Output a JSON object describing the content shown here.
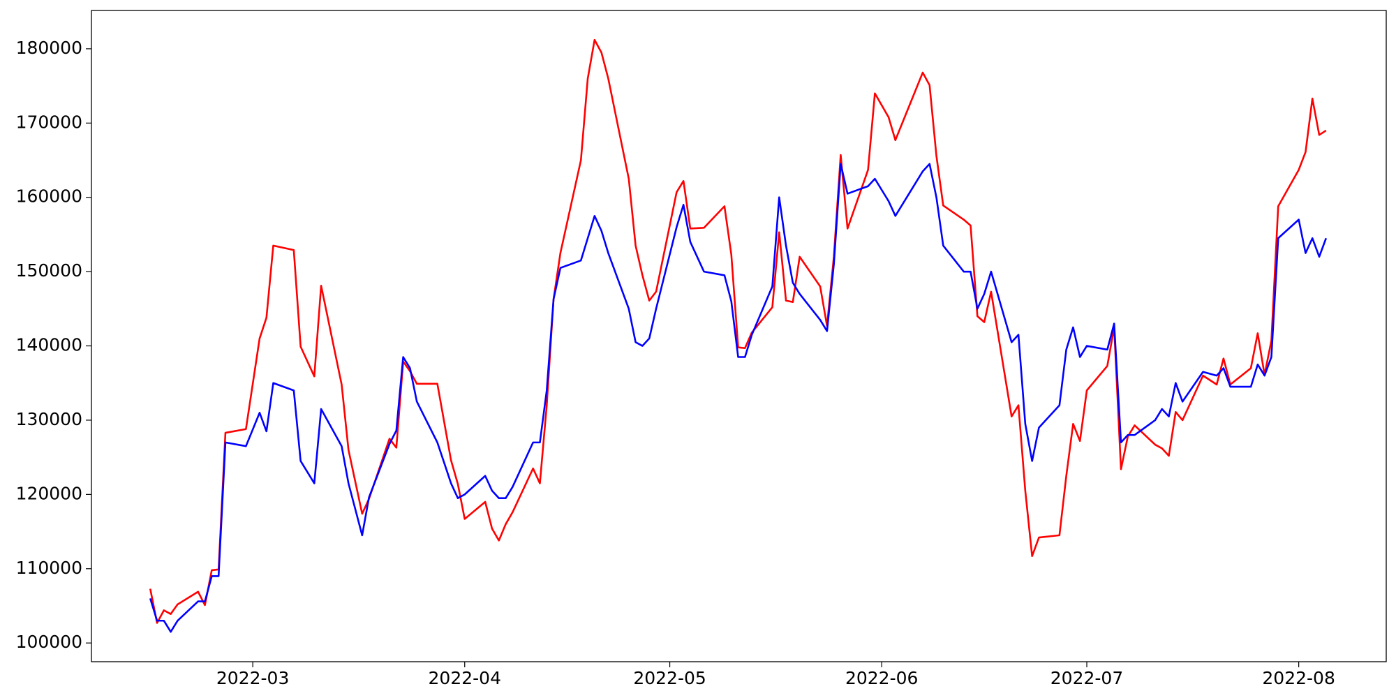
{
  "chart_data": {
    "type": "line",
    "x": [
      45,
      46,
      47,
      48,
      49,
      52,
      53,
      54,
      55,
      56,
      59,
      61,
      62,
      63,
      66,
      67,
      69,
      70,
      73,
      74,
      76,
      77,
      80,
      81,
      82,
      83,
      84,
      87,
      89,
      90,
      91,
      94,
      95,
      96,
      97,
      98,
      101,
      102,
      103,
      104,
      105,
      108,
      109,
      110,
      111,
      112,
      115,
      116,
      117,
      118,
      119,
      122,
      123,
      124,
      126,
      129,
      130,
      131,
      132,
      133,
      136,
      137,
      138,
      139,
      140,
      143,
      144,
      145,
      146,
      147,
      150,
      151,
      153,
      154,
      158,
      159,
      160,
      161,
      164,
      165,
      166,
      167,
      168,
      171,
      172,
      173,
      174,
      175,
      178,
      179,
      180,
      181,
      182,
      185,
      186,
      187,
      188,
      189,
      192,
      193,
      194,
      195,
      196,
      199,
      201,
      202,
      203,
      206,
      207,
      208,
      209,
      210,
      213,
      214,
      215,
      216,
      217
    ],
    "series": [
      {
        "color": "#ff0000",
        "values": [
          107300,
          102700,
          104400,
          103900,
          105200,
          106900,
          105100,
          109800,
          109900,
          128300,
          128800,
          141000,
          143800,
          153500,
          152900,
          139900,
          135900,
          148100,
          134800,
          126000,
          117400,
          119400,
          127500,
          126300,
          137900,
          136600,
          134900,
          134900,
          124600,
          121400,
          116700,
          119000,
          115400,
          113800,
          116000,
          117600,
          123500,
          121500,
          132000,
          146300,
          152500,
          165000,
          176000,
          181200,
          179500,
          176000,
          162500,
          153500,
          149500,
          146100,
          147300,
          160700,
          162200,
          155800,
          155900,
          158800,
          152300,
          139800,
          139700,
          141800,
          145200,
          155300,
          146100,
          145900,
          152000,
          148000,
          142700,
          152000,
          165700,
          155800,
          163700,
          174000,
          170800,
          167700,
          176800,
          175100,
          165600,
          158900,
          157000,
          156200,
          144000,
          143200,
          147300,
          130500,
          132000,
          120500,
          111700,
          114200,
          114500,
          122500,
          129500,
          127200,
          134000,
          137300,
          142500,
          123400,
          127800,
          129300,
          126700,
          126200,
          125200,
          131100,
          130000,
          136000,
          134800,
          138300,
          134800,
          137000,
          141700,
          136100,
          140700,
          158800,
          163700,
          166100,
          173300,
          168400,
          169000
        ]
      },
      {
        "color": "#0000ff",
        "values": [
          106000,
          103000,
          103000,
          101500,
          103000,
          105600,
          105600,
          109000,
          109000,
          127000,
          126500,
          131000,
          128500,
          135000,
          134000,
          124500,
          121500,
          131500,
          126500,
          121500,
          114500,
          119600,
          126800,
          128600,
          138500,
          137000,
          132500,
          127000,
          121500,
          119500,
          120000,
          122500,
          120500,
          119500,
          119500,
          121000,
          127000,
          127000,
          134000,
          146300,
          150500,
          151500,
          154500,
          157500,
          155500,
          152500,
          145000,
          140500,
          140000,
          141000,
          145000,
          156000,
          159000,
          154000,
          150000,
          149500,
          146000,
          138500,
          138500,
          141500,
          148000,
          160000,
          153500,
          148500,
          147000,
          143500,
          142000,
          151000,
          164500,
          160500,
          161500,
          162500,
          159500,
          157500,
          163500,
          164500,
          160000,
          153500,
          150000,
          150000,
          145000,
          147000,
          150000,
          140500,
          141500,
          129500,
          124500,
          129000,
          132000,
          139500,
          142500,
          138500,
          140000,
          139500,
          143000,
          127000,
          128000,
          128000,
          130000,
          131500,
          130500,
          135000,
          132500,
          136500,
          136000,
          137000,
          134500,
          134500,
          137500,
          136000,
          138500,
          154500,
          157000,
          152500,
          154500,
          152000,
          154500
        ]
      }
    ],
    "xlim": [
      36.4,
      225.8
    ],
    "xticks": [
      {
        "value": 60,
        "label": "2022-03"
      },
      {
        "value": 91,
        "label": "2022-04"
      },
      {
        "value": 121,
        "label": "2022-05"
      },
      {
        "value": 152,
        "label": "2022-06"
      },
      {
        "value": 182,
        "label": "2022-07"
      },
      {
        "value": 213,
        "label": "2022-08"
      }
    ],
    "ylim": [
      97480,
      185160
    ],
    "yticks": [
      100000,
      110000,
      120000,
      130000,
      140000,
      150000,
      160000,
      170000,
      180000
    ],
    "grid": false
  }
}
